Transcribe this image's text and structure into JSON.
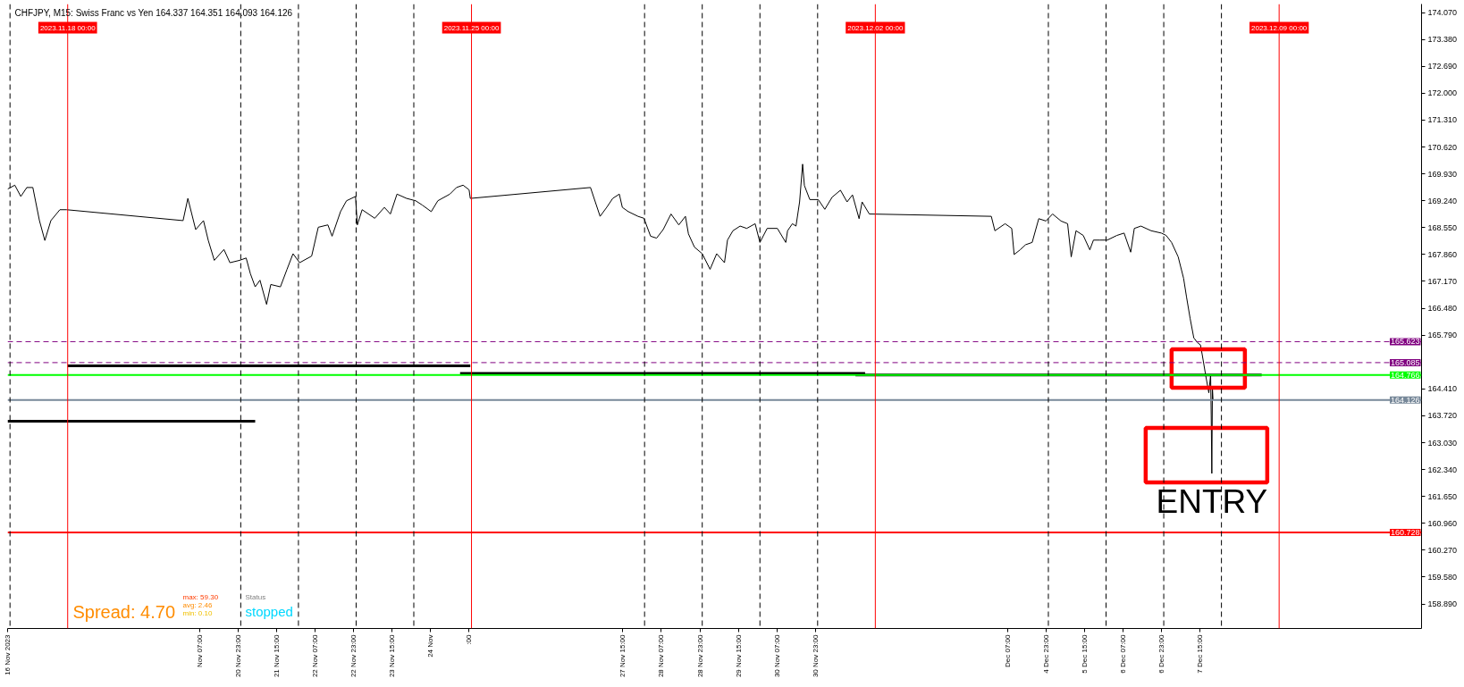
{
  "chart_data": {
    "type": "line",
    "title": "CHFJPY, M15: Swiss Franc vs Yen 164.337 164.351 164.093 164.126",
    "xlim": [
      "2023-11-16T23:00",
      "2023-12-11T11:15"
    ],
    "xticks": [
      {
        "value": "2023-11-16T23:00",
        "label": "16 Nov 2023"
      },
      {
        "value": "2023-11-20T07:00",
        "label": "Nov 07:00"
      },
      {
        "value": "2023-11-20T23:00",
        "label": "20 Nov 23:00"
      },
      {
        "value": "2023-11-21T15:00",
        "label": "21 Nov 15:00"
      },
      {
        "value": "2023-11-22T07:00",
        "label": "22 Nov 07:00"
      },
      {
        "value": "2023-11-22T23:00",
        "label": "22 Nov 23:00"
      },
      {
        "value": "2023-11-23T15:00",
        "label": "23 Nov 15:00"
      },
      {
        "value": "2023-11-24T07:00",
        "label": "24 Nov"
      },
      {
        "value": "2023-11-24T23:00",
        "label": ":00"
      },
      {
        "value": "2023-11-27T15:00",
        "label": "27 Nov 15:00"
      },
      {
        "value": "2023-11-28T07:00",
        "label": "28 Nov 07:00"
      },
      {
        "value": "2023-11-28T23:00",
        "label": "28 Nov 23:00"
      },
      {
        "value": "2023-11-29T15:00",
        "label": "29 Nov 15:00"
      },
      {
        "value": "2023-11-30T07:00",
        "label": "30 Nov 07:00"
      },
      {
        "value": "2023-11-30T23:00",
        "label": "30 Nov 23:00"
      },
      {
        "value": "2023-12-04T07:00",
        "label": "Dec 07:00"
      },
      {
        "value": "2023-12-04T23:00",
        "label": "4 Dec 23:00"
      },
      {
        "value": "2023-12-05T15:00",
        "label": "5 Dec 15:00"
      },
      {
        "value": "2023-12-06T07:00",
        "label": "6 Dec 07:00"
      },
      {
        "value": "2023-12-06T23:00",
        "label": "6 Dec 23:00"
      },
      {
        "value": "2023-12-07T15:00",
        "label": "7 Dec 15:00"
      }
    ],
    "ylim": [
      158.26,
      174.29
    ],
    "yticks": [
      {
        "value": 158.89,
        "label": "158.890"
      },
      {
        "value": 159.58,
        "label": "159.580"
      },
      {
        "value": 160.27,
        "label": "160.270"
      },
      {
        "value": 160.96,
        "label": "160.960"
      },
      {
        "value": 161.65,
        "label": "161.650"
      },
      {
        "value": 162.34,
        "label": "162.340"
      },
      {
        "value": 163.03,
        "label": "163.030"
      },
      {
        "value": 163.72,
        "label": "163.720"
      },
      {
        "value": 164.41,
        "label": "164.410"
      },
      {
        "value": 165.79,
        "label": "165.790"
      },
      {
        "value": 166.48,
        "label": "166.480"
      },
      {
        "value": 167.17,
        "label": "167.170"
      },
      {
        "value": 167.86,
        "label": "167.860"
      },
      {
        "value": 168.55,
        "label": "168.550"
      },
      {
        "value": 169.24,
        "label": "169.240"
      },
      {
        "value": 169.93,
        "label": "169.930"
      },
      {
        "value": 170.62,
        "label": "170.620"
      },
      {
        "value": 171.31,
        "label": "171.310"
      },
      {
        "value": 172.0,
        "label": "172.000"
      },
      {
        "value": 172.69,
        "label": "172.690"
      },
      {
        "value": 173.38,
        "label": "173.380"
      },
      {
        "value": 174.07,
        "label": "174.070"
      }
    ],
    "series": [
      {
        "color": "#000000",
        "x": [
          "2023-11-16T23:00",
          "2023-11-17T02:00",
          "2023-11-17T04:30",
          "2023-11-17T07:00",
          "2023-11-17T09:30",
          "2023-11-17T12:15",
          "2023-11-17T14:30",
          "2023-11-17T17:00",
          "2023-11-17T20:45",
          "2023-11-17T23:30",
          "2023-11-20T00:00",
          "2023-11-20T02:00",
          "2023-11-20T05:15",
          "2023-11-20T08:30",
          "2023-11-20T10:30",
          "2023-11-20T13:00",
          "2023-11-20T17:00",
          "2023-11-20T19:30",
          "2023-11-20T23:30",
          "2023-11-21T02:15",
          "2023-11-21T04:00",
          "2023-11-21T06:00",
          "2023-11-21T08:00",
          "2023-11-21T10:45",
          "2023-11-21T12:30",
          "2023-11-21T16:30",
          "2023-11-21T19:15",
          "2023-11-21T21:45",
          "2023-11-22T00:30",
          "2023-11-22T05:30",
          "2023-11-22T08:15",
          "2023-11-22T12:15",
          "2023-11-22T14:00",
          "2023-11-22T17:30",
          "2023-11-22T20:00",
          "2023-11-22T23:45",
          "2023-11-23T00:30",
          "2023-11-23T02:30",
          "2023-11-23T07:45",
          "2023-11-23T11:45",
          "2023-11-23T14:15",
          "2023-11-23T17:00",
          "2023-11-23T21:00",
          "2023-11-24T00:45",
          "2023-11-24T03:30",
          "2023-11-24T07:15",
          "2023-11-24T10:00",
          "2023-11-24T15:00",
          "2023-11-24T17:45",
          "2023-11-24T20:30",
          "2023-11-24T23:00",
          "2023-11-24T23:30",
          "2023-11-27T01:30",
          "2023-11-27T05:30",
          "2023-11-27T08:15",
          "2023-11-27T10:45",
          "2023-11-27T13:30",
          "2023-11-27T14:45",
          "2023-11-27T17:15",
          "2023-11-27T21:15",
          "2023-11-27T23:45",
          "2023-11-28T02:30",
          "2023-11-28T05:00",
          "2023-11-28T07:45",
          "2023-11-28T11:00",
          "2023-11-28T14:15",
          "2023-11-28T17:00",
          "2023-11-28T18:15",
          "2023-11-28T20:45",
          "2023-11-29T00:00",
          "2023-11-29T03:15",
          "2023-11-29T06:00",
          "2023-11-29T09:15",
          "2023-11-29T10:30",
          "2023-11-29T12:45",
          "2023-11-29T15:45",
          "2023-11-29T18:30",
          "2023-11-29T22:00",
          "2023-11-30T00:00",
          "2023-11-30T03:00",
          "2023-11-30T07:15",
          "2023-11-30T10:45",
          "2023-11-30T11:30",
          "2023-11-30T13:30",
          "2023-11-30T15:00",
          "2023-11-30T16:30",
          "2023-11-30T17:45",
          "2023-11-30T18:30",
          "2023-11-30T20:45",
          "2023-12-01T00:15",
          "2023-12-01T03:00",
          "2023-12-01T06:00",
          "2023-12-01T09:30",
          "2023-12-01T12:15",
          "2023-12-01T14:30",
          "2023-12-01T17:15",
          "2023-12-01T18:30",
          "2023-12-01T21:30",
          "2023-12-04T00:15",
          "2023-12-04T01:45",
          "2023-12-04T06:00",
          "2023-12-04T08:45",
          "2023-12-04T09:45",
          "2023-12-04T12:15",
          "2023-12-04T14:30",
          "2023-12-04T17:15",
          "2023-12-04T20:00",
          "2023-12-04T23:00",
          "2023-12-05T01:45",
          "2023-12-05T05:15",
          "2023-12-05T08:00",
          "2023-12-05T09:30",
          "2023-12-05T11:30",
          "2023-12-05T14:30",
          "2023-12-05T17:15",
          "2023-12-05T18:45",
          "2023-12-05T21:30",
          "2023-12-06T00:30",
          "2023-12-06T04:30",
          "2023-12-06T07:30",
          "2023-12-06T10:15",
          "2023-12-06T11:45",
          "2023-12-06T14:30",
          "2023-12-06T18:45",
          "2023-12-06T23:00",
          "2023-12-07T01:00",
          "2023-12-07T03:15",
          "2023-12-07T06:00",
          "2023-12-07T08:15",
          "2023-12-07T09:30",
          "2023-12-07T11:00",
          "2023-12-07T12:30",
          "2023-12-07T14:00",
          "2023-12-07T15:15",
          "2023-12-07T16:00",
          "2023-12-07T17:30",
          "2023-12-07T18:45",
          "2023-12-07T19:30",
          "2023-12-07T19:45",
          "2023-12-07T20:00",
          "2023-12-07T20:15",
          "2023-12-07T20:30"
        ],
        "values": [
          169.54,
          169.64,
          169.35,
          169.58,
          169.58,
          168.73,
          168.22,
          168.73,
          169.01,
          169.01,
          168.73,
          169.3,
          168.5,
          168.73,
          168.22,
          167.71,
          167.99,
          167.65,
          167.71,
          167.77,
          167.37,
          167.03,
          167.2,
          166.58,
          167.09,
          167.03,
          167.48,
          167.88,
          167.65,
          167.82,
          168.56,
          168.62,
          168.33,
          168.96,
          169.24,
          169.35,
          168.62,
          169.01,
          168.79,
          169.07,
          168.9,
          169.41,
          169.3,
          169.24,
          169.13,
          168.96,
          169.24,
          169.41,
          169.58,
          169.64,
          169.52,
          169.3,
          169.58,
          168.84,
          169.07,
          169.3,
          169.41,
          169.07,
          168.96,
          168.84,
          168.79,
          168.33,
          168.28,
          168.5,
          168.9,
          168.62,
          168.84,
          168.39,
          168.05,
          167.88,
          167.48,
          167.88,
          167.65,
          168.23,
          168.47,
          168.59,
          168.53,
          168.65,
          168.17,
          168.53,
          168.53,
          168.17,
          168.47,
          168.65,
          168.59,
          169.21,
          170.18,
          169.63,
          169.27,
          169.27,
          169.02,
          169.33,
          169.51,
          169.21,
          169.39,
          168.78,
          169.21,
          168.9,
          168.84,
          168.47,
          168.65,
          168.53,
          167.86,
          167.98,
          168.11,
          168.17,
          168.78,
          168.72,
          168.9,
          168.72,
          168.65,
          167.8,
          168.47,
          168.35,
          167.98,
          168.23,
          168.23,
          168.23,
          168.35,
          168.41,
          167.92,
          168.53,
          168.59,
          168.47,
          168.41,
          168.35,
          168.17,
          167.8,
          167.25,
          166.76,
          166.21,
          165.72,
          165.6,
          165.54,
          165.29,
          164.74,
          164.31,
          164.77,
          163.73,
          162.24,
          164.44,
          164.13
        ]
      },
      {
        "color": "#000000",
        "x": [
          "2023-11-16T23:00",
          "2023-11-21T06:00"
        ],
        "values": [
          163.58,
          163.58
        ]
      },
      {
        "color": "#000000",
        "x": [
          "2023-11-18T00:00",
          "2023-11-24T23:30"
        ],
        "values": [
          165.0,
          165.0
        ]
      },
      {
        "color": "#000000",
        "x": [
          "2023-11-24T19:15",
          "2023-12-01T19:45"
        ],
        "values": [
          164.81,
          164.81
        ]
      },
      {
        "color": "#000000",
        "x": [
          "2023-12-01T15:45",
          "2023-12-08T16:45"
        ],
        "values": [
          164.77,
          164.77
        ]
      }
    ],
    "ref_lines": [
      {
        "axis": "y",
        "value": 165.623,
        "label": "165.623",
        "color": "#800080",
        "line_style": "dashed"
      },
      {
        "axis": "y",
        "value": 165.085,
        "label": "165.085",
        "color": "#800080",
        "line_style": "dashed"
      },
      {
        "axis": "y",
        "value": 164.766,
        "label": "164.766",
        "color": "#00ff00",
        "line_style": "solid"
      },
      {
        "axis": "y",
        "value": 164.126,
        "label": "164.126",
        "color": "#778899",
        "line_style": "solid"
      },
      {
        "axis": "y",
        "value": 160.728,
        "label": "160.728",
        "color": "#ff0000",
        "line_style": "solid"
      },
      {
        "axis": "x",
        "value": "2023-11-18T00:00",
        "label": "2023.11.18 00:00",
        "color": "#ff0000",
        "line_style": "solid"
      },
      {
        "axis": "x",
        "value": "2023-11-25T00:00",
        "label": "2023.11.25 00:00",
        "color": "#ff0000",
        "line_style": "solid"
      },
      {
        "axis": "x",
        "value": "2023-12-02T00:00",
        "label": "2023.12.02 00:00",
        "color": "#ff0000",
        "line_style": "solid"
      },
      {
        "axis": "x",
        "value": "2023-12-09T00:00",
        "label": "2023.12.09 00:00",
        "color": "#ff0000",
        "line_style": "solid"
      },
      {
        "axis": "x",
        "value": "2023-11-17T00:00",
        "color": "#000000",
        "line_style": "dashed"
      },
      {
        "axis": "x",
        "value": "2023-11-21T00:00",
        "color": "#000000",
        "line_style": "dashed"
      },
      {
        "axis": "x",
        "value": "2023-11-22T00:00",
        "color": "#000000",
        "line_style": "dashed"
      },
      {
        "axis": "x",
        "value": "2023-11-23T00:00",
        "color": "#000000",
        "line_style": "dashed"
      },
      {
        "axis": "x",
        "value": "2023-11-24T00:00",
        "color": "#000000",
        "line_style": "dashed"
      },
      {
        "axis": "x",
        "value": "2023-11-28T00:00",
        "color": "#000000",
        "line_style": "dashed"
      },
      {
        "axis": "x",
        "value": "2023-11-29T00:00",
        "color": "#000000",
        "line_style": "dashed"
      },
      {
        "axis": "x",
        "value": "2023-11-30T00:00",
        "color": "#000000",
        "line_style": "dashed"
      },
      {
        "axis": "x",
        "value": "2023-12-01T00:00",
        "color": "#000000",
        "line_style": "dashed"
      },
      {
        "axis": "x",
        "value": "2023-12-05T00:00",
        "color": "#000000",
        "line_style": "dashed"
      },
      {
        "axis": "x",
        "value": "2023-12-06T00:00",
        "color": "#000000",
        "line_style": "dashed"
      },
      {
        "axis": "x",
        "value": "2023-12-07T00:00",
        "color": "#000000",
        "line_style": "dashed"
      },
      {
        "axis": "x",
        "value": "2023-12-08T00:00",
        "color": "#000000",
        "line_style": "dashed"
      }
    ],
    "annotations": [
      "Spread: 4.70",
      "max: 59.30",
      "avg: 2.46",
      "min: 0.10",
      "Status",
      "stopped",
      {
        "text": "ENTRY",
        "x": "2023-12-07T20:00",
        "y": 162.24
      }
    ]
  }
}
